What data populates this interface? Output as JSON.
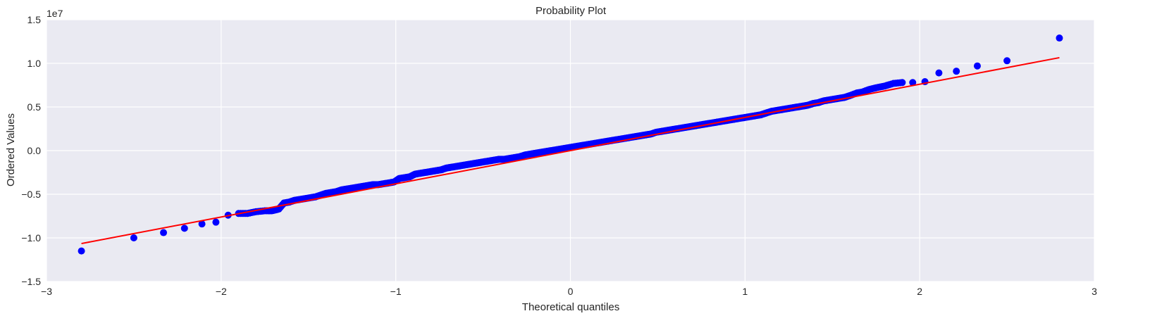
{
  "chart_data": {
    "type": "scatter",
    "title": "Probability Plot",
    "xlabel": "Theoretical quantiles",
    "ylabel": "Ordered Values",
    "y_offset_label": "1e7",
    "xlim": [
      -3,
      3
    ],
    "ylim": [
      -1.5,
      1.5
    ],
    "x_ticks": [
      -3,
      -2,
      -1,
      0,
      1,
      2,
      3
    ],
    "x_tick_labels": [
      "−3",
      "−2",
      "−1",
      "0",
      "1",
      "2",
      "3"
    ],
    "y_ticks": [
      -1.5,
      -1.0,
      -0.5,
      0.0,
      0.5,
      1.0,
      1.5
    ],
    "y_tick_labels": [
      "−1.5",
      "−1.0",
      "−0.5",
      "0.0",
      "0.5",
      "1.0",
      "1.5"
    ],
    "grid": true,
    "background_color": "#EAEAF2",
    "grid_color": "#FFFFFF",
    "series": [
      {
        "kind": "points",
        "color": "#0000FF",
        "x": [
          -2.8,
          -2.5,
          -2.33,
          -2.21,
          -2.11,
          -2.03,
          -1.96,
          -1.9,
          -1.85,
          -1.8,
          -1.75,
          -1.71,
          -1.67,
          -1.64,
          -1.61,
          -1.58,
          -1.55,
          -1.52,
          -1.49,
          -1.46,
          -1.43,
          -1.4,
          -1.37,
          -1.34,
          -1.31,
          -1.28,
          -1.25,
          -1.22,
          -1.19,
          -1.16,
          -1.13,
          -1.1,
          -1.07,
          -1.04,
          -1.01,
          -0.98,
          -0.95,
          -0.92,
          -0.89,
          -0.86,
          -0.83,
          -0.8,
          -0.77,
          -0.74,
          -0.71,
          -0.68,
          -0.65,
          -0.62,
          -0.59,
          -0.56,
          -0.53,
          -0.5,
          -0.47,
          -0.44,
          -0.41,
          -0.38,
          -0.35,
          -0.32,
          -0.29,
          -0.26,
          -0.23,
          -0.2,
          -0.17,
          -0.14,
          -0.11,
          -0.08,
          -0.05,
          -0.02,
          0.01,
          0.04,
          0.07,
          0.1,
          0.13,
          0.16,
          0.19,
          0.22,
          0.25,
          0.28,
          0.31,
          0.34,
          0.37,
          0.4,
          0.43,
          0.46,
          0.49,
          0.52,
          0.55,
          0.58,
          0.61,
          0.64,
          0.67,
          0.7,
          0.73,
          0.76,
          0.79,
          0.82,
          0.85,
          0.88,
          0.91,
          0.94,
          0.97,
          1.0,
          1.03,
          1.06,
          1.09,
          1.12,
          1.15,
          1.18,
          1.21,
          1.24,
          1.27,
          1.3,
          1.33,
          1.36,
          1.39,
          1.42,
          1.45,
          1.48,
          1.51,
          1.54,
          1.57,
          1.6,
          1.64,
          1.67,
          1.71,
          1.75,
          1.8,
          1.85,
          1.9,
          1.96,
          2.03,
          2.11,
          2.21,
          2.33,
          2.5,
          2.8
        ],
        "y": [
          -1.15,
          -1.0,
          -0.94,
          -0.89,
          -0.84,
          -0.82,
          -0.74,
          -0.72,
          -0.72,
          -0.7,
          -0.69,
          -0.69,
          -0.67,
          -0.6,
          -0.59,
          -0.57,
          -0.56,
          -0.55,
          -0.54,
          -0.53,
          -0.51,
          -0.49,
          -0.48,
          -0.47,
          -0.45,
          -0.44,
          -0.43,
          -0.42,
          -0.41,
          -0.4,
          -0.39,
          -0.39,
          -0.38,
          -0.37,
          -0.36,
          -0.32,
          -0.31,
          -0.3,
          -0.27,
          -0.26,
          -0.25,
          -0.24,
          -0.23,
          -0.22,
          -0.2,
          -0.19,
          -0.18,
          -0.17,
          -0.16,
          -0.15,
          -0.14,
          -0.13,
          -0.12,
          -0.11,
          -0.1,
          -0.1,
          -0.09,
          -0.08,
          -0.07,
          -0.05,
          -0.04,
          -0.03,
          -0.02,
          -0.01,
          0.0,
          0.01,
          0.02,
          0.03,
          0.04,
          0.05,
          0.06,
          0.07,
          0.08,
          0.09,
          0.1,
          0.11,
          0.12,
          0.13,
          0.14,
          0.15,
          0.16,
          0.17,
          0.18,
          0.19,
          0.21,
          0.22,
          0.23,
          0.24,
          0.25,
          0.26,
          0.27,
          0.28,
          0.29,
          0.3,
          0.31,
          0.32,
          0.33,
          0.34,
          0.35,
          0.36,
          0.37,
          0.38,
          0.39,
          0.4,
          0.41,
          0.43,
          0.45,
          0.46,
          0.47,
          0.48,
          0.49,
          0.5,
          0.51,
          0.52,
          0.54,
          0.55,
          0.57,
          0.58,
          0.59,
          0.6,
          0.61,
          0.63,
          0.66,
          0.67,
          0.7,
          0.72,
          0.74,
          0.77,
          0.78,
          0.78,
          0.79,
          0.89,
          0.91,
          0.97,
          1.03,
          1.29
        ]
      },
      {
        "kind": "fit-line",
        "color": "#FF0000",
        "x": [
          -2.8,
          2.8
        ],
        "y": [
          -1.065,
          1.065
        ]
      }
    ]
  }
}
